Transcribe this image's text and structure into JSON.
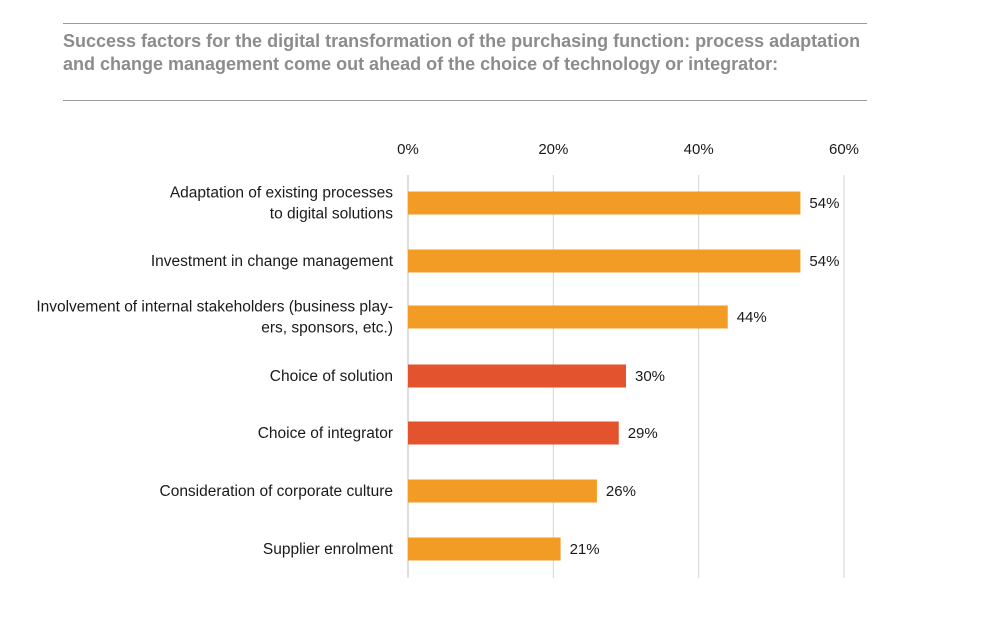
{
  "title": "Success factors for the digital transformation of the purchasing function: process adaptation and change management come out ahead of the choice of technology or integrator:",
  "colors": {
    "primary": "#f39c25",
    "highlight": "#e3532d",
    "grid": "#d4d4d4",
    "title": "#8c8c8c"
  },
  "chart_data": {
    "type": "bar",
    "orientation": "horizontal",
    "title": "Success factors for the digital transformation of the purchasing function: process adaptation and change management come out ahead of the choice of technology or integrator:",
    "xlim": [
      0,
      60
    ],
    "x_ticks": [
      "0%",
      "20%",
      "40%",
      "60%"
    ],
    "x_tick_values": [
      0,
      20,
      40,
      60
    ],
    "grid": true,
    "categories": [
      [
        "Adaptation of existing processes",
        "to digital solutions"
      ],
      [
        "Investment in change management"
      ],
      [
        "Involvement of internal stakeholders (business play-",
        "ers, sponsors, etc.)"
      ],
      [
        "Choice of solution"
      ],
      [
        "Choice of integrator"
      ],
      [
        "Consideration of corporate culture"
      ],
      [
        "Supplier enrolment"
      ]
    ],
    "values": [
      54,
      54,
      44,
      30,
      29,
      26,
      21
    ],
    "value_labels": [
      "54%",
      "54%",
      "44%",
      "30%",
      "29%",
      "26%",
      "21%"
    ],
    "highlighted": [
      false,
      false,
      false,
      true,
      true,
      false,
      false
    ]
  }
}
